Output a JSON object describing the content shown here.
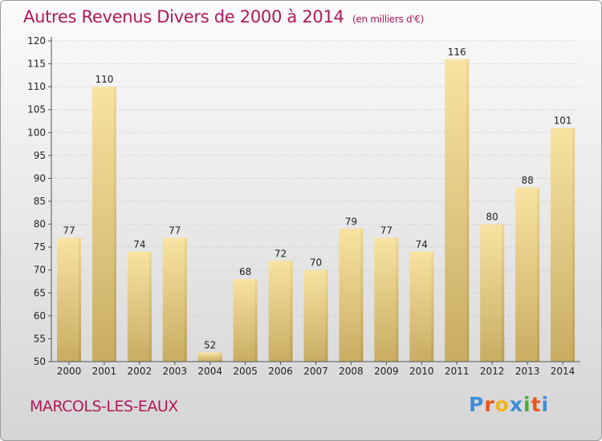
{
  "title": "Autres Revenus Divers de 2000 à 2014",
  "title_unit": "(en milliers d'€)",
  "town": "MARCOLS-LES-EAUX",
  "logo": {
    "letters": [
      "P",
      "r",
      "o",
      "x",
      "i",
      "t",
      "i"
    ],
    "colors": [
      "#3f8ed8",
      "#e8561e",
      "#f2b51a",
      "#3f8ed8",
      "#4daa3c",
      "#e8561e",
      "#3f8ed8"
    ]
  },
  "colors": {
    "title": "#b0185b",
    "bar_light": "#f8e3a2",
    "bar_dark": "#c9ac62"
  },
  "chart_data": {
    "type": "bar",
    "categories": [
      "2000",
      "2001",
      "2002",
      "2003",
      "2004",
      "2005",
      "2006",
      "2007",
      "2008",
      "2009",
      "2010",
      "2011",
      "2012",
      "2013",
      "2014"
    ],
    "values": [
      77,
      110,
      74,
      77,
      52,
      68,
      72,
      70,
      79,
      77,
      74,
      116,
      80,
      88,
      101
    ],
    "y_ticks": [
      50,
      55,
      60,
      65,
      70,
      75,
      80,
      85,
      90,
      95,
      100,
      105,
      110,
      115,
      120
    ],
    "ylim": [
      50,
      120
    ],
    "grid": true
  }
}
